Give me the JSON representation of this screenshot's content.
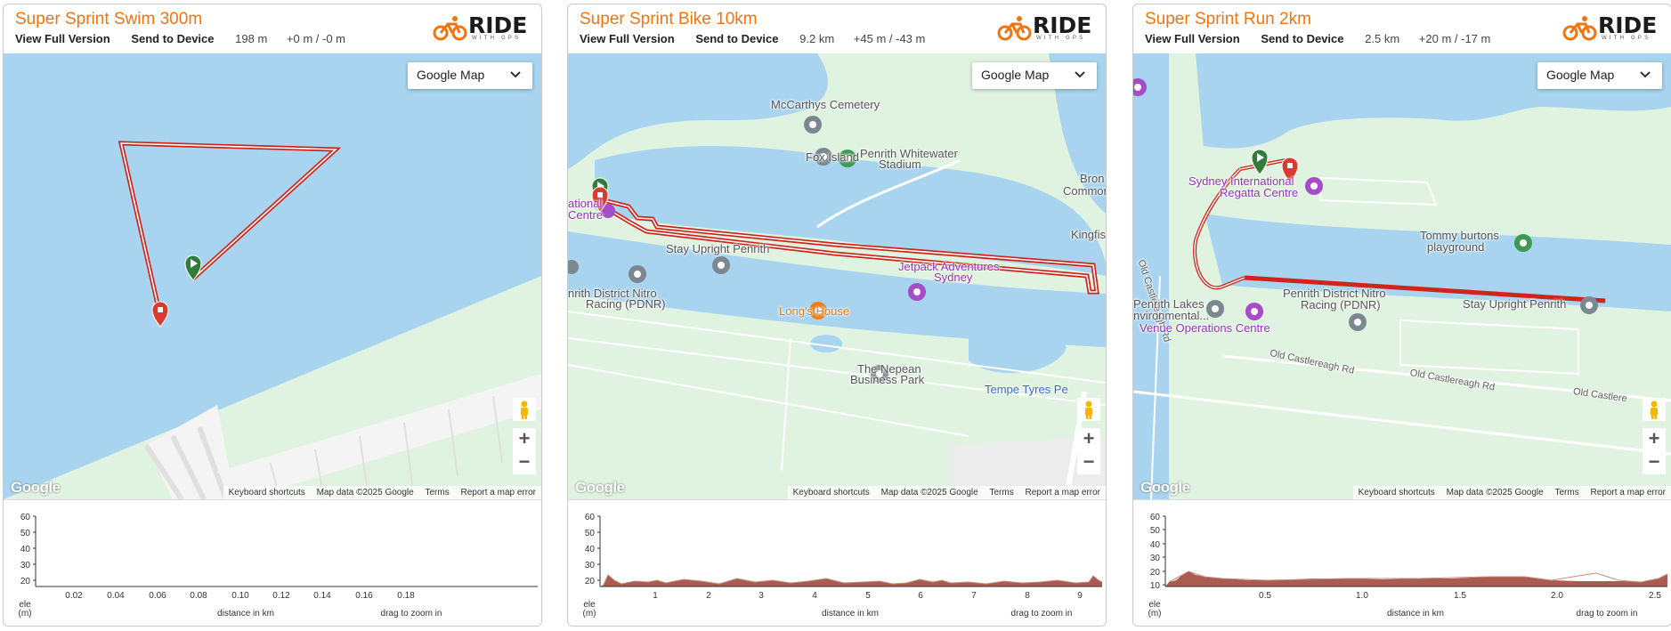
{
  "panels": [
    {
      "title": "Super Sprint Swim 300m",
      "view_full": "View Full Version",
      "send_device": "Send to Device",
      "distance": "198 m",
      "elevation": "+0 m / -0 m",
      "map_type": "Google Map",
      "labels": [],
      "elev_ticks_y": [
        "60",
        "50",
        "40",
        "30",
        "20"
      ],
      "elev_ticks_x": [
        "0.02",
        "0.04",
        "0.06",
        "0.08",
        "0.10",
        "0.12",
        "0.14",
        "0.16",
        "0.18"
      ]
    },
    {
      "title": "Super Sprint Bike 10km",
      "view_full": "View Full Version",
      "send_device": "Send to Device",
      "distance": "9.2 km",
      "elevation": "+45 m / -43 m",
      "map_type": "Google Map",
      "labels": [
        "McCarthys Cemetery",
        "Fox Island",
        "Penrith Whitewater",
        "Stadium",
        "Bron",
        "Common Gy",
        "ational",
        "Centre",
        "Kingfish",
        "Stay Upright Penrith",
        "Jetpack Adventures",
        "Sydney",
        "nrith District Nitro",
        "Racing (PDNR)",
        "Long's House",
        "The Nepean",
        "Business Park",
        "Tempe Tyres Pe"
      ],
      "elev_ticks_y": [
        "60",
        "50",
        "40",
        "30",
        "20"
      ],
      "elev_ticks_x": [
        "1",
        "2",
        "3",
        "4",
        "5",
        "6",
        "7",
        "8",
        "9"
      ]
    },
    {
      "title": "Super Sprint Run 2km",
      "view_full": "View Full Version",
      "send_device": "Send to Device",
      "distance": "2.5 km",
      "elevation": "+20 m / -17 m",
      "map_type": "Google Map",
      "labels": [
        "Sydney International",
        "Regatta Centre",
        "Tommy burtons",
        "playground",
        "Old Castlereagh Rd",
        "Penrith Lakes",
        "nvironmental...",
        "Penrith District Nitro",
        "Racing (PDNR)",
        "Stay Upright Penrith",
        "Venue Operations Centre",
        "Old Castlereagh Rd",
        "Old Castlereagh Rd",
        "Old Castlere"
      ],
      "elev_ticks_y": [
        "60",
        "50",
        "40",
        "30",
        "20",
        "10"
      ],
      "elev_ticks_x": [
        "0.5",
        "1.0",
        "1.5",
        "2.0",
        "2.5"
      ]
    }
  ],
  "map_common": {
    "google": "Google",
    "keyboard": "Keyboard shortcuts",
    "mapdata": "Map data ©2025 Google",
    "terms": "Terms",
    "report": "Report a map error",
    "zoom_in": "+",
    "zoom_out": "−"
  },
  "elev_common": {
    "ele": "ele",
    "unit": "(m)",
    "xlabel": "distance in km",
    "drag": "drag to zoom in"
  },
  "logo": {
    "word": "RIDE",
    "sub": "WITH GPS"
  },
  "colors": {
    "title": "#f2740f",
    "water": "#a9d4ef",
    "land": "#dff3e0",
    "route": "#d0241b",
    "elev_fill": "#a04a3c"
  },
  "icons": {
    "dropdown": "chevron-down-icon",
    "start": "start-marker-icon",
    "end": "end-marker-icon",
    "pegman": "pegman-icon",
    "pin": "place-pin-icon"
  }
}
